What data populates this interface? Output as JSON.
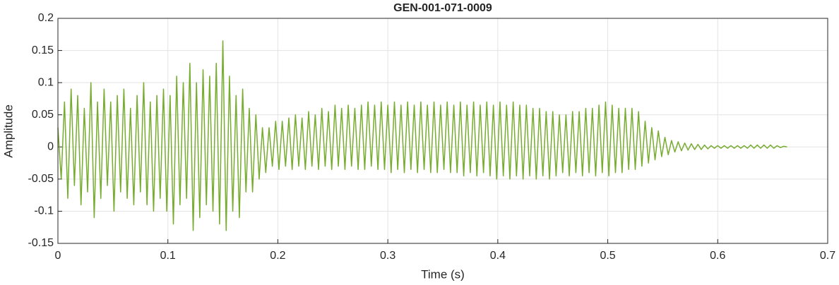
{
  "chart_data": {
    "type": "line",
    "title": "GEN-001-071-0009",
    "xlabel": "Time (s)",
    "ylabel": "Amplitude",
    "color": "#77ac30",
    "grid": true,
    "xlim": [
      0,
      0.7
    ],
    "ylim": [
      -0.15,
      0.2
    ],
    "xticks": [
      0,
      0.1,
      0.2,
      0.3,
      0.4,
      0.5,
      0.6,
      0.7
    ],
    "yticks": [
      -0.15,
      -0.1,
      -0.05,
      0,
      0.05,
      0.1,
      0.15,
      0.2
    ],
    "x": [
      0,
      0.003,
      0.006,
      0.009,
      0.012,
      0.015,
      0.018,
      0.021,
      0.024,
      0.027,
      0.03,
      0.033,
      0.036,
      0.039,
      0.042,
      0.045,
      0.048,
      0.051,
      0.054,
      0.057,
      0.06,
      0.063,
      0.066,
      0.069,
      0.072,
      0.075,
      0.078,
      0.081,
      0.084,
      0.087,
      0.09,
      0.093,
      0.096,
      0.099,
      0.102,
      0.105,
      0.108,
      0.111,
      0.114,
      0.117,
      0.12,
      0.123,
      0.126,
      0.129,
      0.132,
      0.135,
      0.138,
      0.141,
      0.144,
      0.147,
      0.15,
      0.153,
      0.156,
      0.159,
      0.162,
      0.165,
      0.168,
      0.171,
      0.174,
      0.177,
      0.18,
      0.183,
      0.186,
      0.189,
      0.192,
      0.195,
      0.198,
      0.201,
      0.204,
      0.207,
      0.21,
      0.213,
      0.216,
      0.219,
      0.222,
      0.225,
      0.228,
      0.231,
      0.234,
      0.237,
      0.24,
      0.243,
      0.246,
      0.249,
      0.252,
      0.255,
      0.258,
      0.261,
      0.264,
      0.267,
      0.27,
      0.273,
      0.276,
      0.279,
      0.282,
      0.285,
      0.288,
      0.291,
      0.294,
      0.297,
      0.3,
      0.303,
      0.306,
      0.309,
      0.312,
      0.315,
      0.318,
      0.321,
      0.324,
      0.327,
      0.33,
      0.333,
      0.336,
      0.339,
      0.342,
      0.345,
      0.348,
      0.351,
      0.354,
      0.357,
      0.36,
      0.363,
      0.366,
      0.369,
      0.372,
      0.375,
      0.378,
      0.381,
      0.384,
      0.387,
      0.39,
      0.393,
      0.396,
      0.399,
      0.402,
      0.405,
      0.408,
      0.411,
      0.414,
      0.417,
      0.42,
      0.423,
      0.426,
      0.429,
      0.432,
      0.435,
      0.438,
      0.441,
      0.444,
      0.447,
      0.45,
      0.453,
      0.456,
      0.459,
      0.462,
      0.465,
      0.468,
      0.471,
      0.474,
      0.477,
      0.48,
      0.483,
      0.486,
      0.489,
      0.492,
      0.495,
      0.498,
      0.501,
      0.504,
      0.507,
      0.51,
      0.513,
      0.516,
      0.519,
      0.522,
      0.525,
      0.528,
      0.531,
      0.534,
      0.537,
      0.54,
      0.543,
      0.546,
      0.549,
      0.552,
      0.555,
      0.558,
      0.561,
      0.564,
      0.567,
      0.57,
      0.573,
      0.576,
      0.579,
      0.582,
      0.585,
      0.588,
      0.591,
      0.594,
      0.597,
      0.6,
      0.603,
      0.606,
      0.609,
      0.612,
      0.615,
      0.618,
      0.621,
      0.624,
      0.627,
      0.63,
      0.633,
      0.636,
      0.639,
      0.642,
      0.645,
      0.648,
      0.651,
      0.654,
      0.657,
      0.66,
      0.663
    ],
    "values": [
      0.03,
      -0.05,
      0.07,
      -0.08,
      0.09,
      -0.06,
      0.08,
      -0.09,
      0.06,
      -0.07,
      0.1,
      -0.11,
      0.07,
      -0.08,
      0.09,
      -0.06,
      0.07,
      -0.1,
      0.08,
      -0.07,
      0.09,
      -0.08,
      0.06,
      -0.09,
      0.08,
      -0.07,
      0.1,
      -0.09,
      0.07,
      -0.1,
      0.08,
      -0.08,
      0.09,
      -0.1,
      0.08,
      -0.12,
      0.11,
      -0.09,
      0.1,
      -0.08,
      0.13,
      -0.13,
      0.1,
      -0.11,
      0.12,
      -0.09,
      0.11,
      -0.1,
      0.13,
      -0.12,
      0.165,
      -0.13,
      0.11,
      -0.1,
      0.08,
      -0.11,
      0.09,
      -0.07,
      0.06,
      -0.07,
      0.05,
      -0.05,
      0.03,
      -0.04,
      0.03,
      -0.03,
      0.04,
      -0.035,
      0.04,
      -0.03,
      0.045,
      -0.035,
      0.05,
      -0.03,
      0.045,
      -0.035,
      0.055,
      -0.03,
      0.05,
      -0.035,
      0.06,
      -0.03,
      0.055,
      -0.035,
      0.065,
      -0.03,
      0.06,
      -0.035,
      0.065,
      -0.03,
      0.06,
      -0.035,
      0.065,
      -0.035,
      0.07,
      -0.03,
      0.065,
      -0.035,
      0.07,
      -0.035,
      0.065,
      -0.04,
      0.07,
      -0.035,
      0.065,
      -0.04,
      0.07,
      -0.035,
      0.065,
      -0.04,
      0.07,
      -0.035,
      0.065,
      -0.04,
      0.07,
      -0.04,
      0.065,
      -0.035,
      0.07,
      -0.04,
      0.065,
      -0.04,
      0.07,
      -0.045,
      0.065,
      -0.04,
      0.07,
      -0.045,
      0.065,
      -0.04,
      0.07,
      -0.045,
      0.065,
      -0.05,
      0.07,
      -0.045,
      0.065,
      -0.05,
      0.07,
      -0.045,
      0.065,
      -0.05,
      0.065,
      -0.045,
      0.06,
      -0.05,
      0.06,
      -0.045,
      0.055,
      -0.05,
      0.055,
      -0.045,
      0.05,
      -0.04,
      0.05,
      -0.045,
      0.055,
      -0.04,
      0.055,
      -0.045,
      0.06,
      -0.04,
      0.06,
      -0.045,
      0.065,
      -0.04,
      0.07,
      -0.045,
      0.065,
      -0.04,
      0.06,
      -0.04,
      0.06,
      -0.035,
      0.06,
      -0.035,
      0.055,
      -0.03,
      0.04,
      -0.025,
      0.03,
      -0.02,
      0.025,
      -0.015,
      0.015,
      -0.012,
      0.01,
      -0.008,
      0.008,
      -0.006,
      0.006,
      -0.005,
      0.005,
      -0.004,
      0.004,
      -0.004,
      0.003,
      -0.003,
      0.002,
      -0.002,
      0.002,
      -0.002,
      0.002,
      -0.002,
      0.002,
      -0.002,
      0.002,
      -0.002,
      0.002,
      -0.002,
      0.003,
      -0.002,
      0.003,
      -0.002,
      0.003,
      -0.002,
      0.003,
      -0.002,
      0.002,
      -0.001,
      0.001,
      0
    ]
  }
}
